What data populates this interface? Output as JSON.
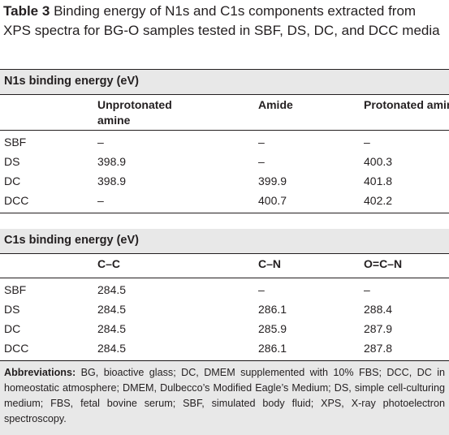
{
  "caption": {
    "label": "Table 3",
    "text": "Binding energy of N1s and C1s components extracted from XPS spectra for BG-O samples tested in SBF, DS, DC, and DCC media"
  },
  "sections": [
    {
      "title": "N1s binding energy (eV)",
      "columns": [
        "Unprotonated amine",
        "Amide",
        "Protonated amine"
      ],
      "rows": [
        [
          "SBF",
          "–",
          "–",
          "–"
        ],
        [
          "DS",
          "398.9",
          "–",
          "400.3"
        ],
        [
          "DC",
          "398.9",
          "399.9",
          "401.8"
        ],
        [
          "DCC",
          "–",
          "400.7",
          "402.2"
        ]
      ]
    },
    {
      "title": "C1s binding energy (eV)",
      "columns": [
        "C–C",
        "C–N",
        "O=C–N"
      ],
      "rows": [
        [
          "SBF",
          "284.5",
          "–",
          "–"
        ],
        [
          "DS",
          "284.5",
          "286.1",
          "288.4"
        ],
        [
          "DC",
          "284.5",
          "285.9",
          "287.9"
        ],
        [
          "DCC",
          "284.5",
          "286.1",
          "287.8"
        ]
      ]
    }
  ],
  "footnote": {
    "label": "Abbreviations:",
    "text": "BG, bioactive glass; DC, DMEM supplemented with 10% FBS; DCC, DC in homeostatic atmosphere; DMEM, Dulbecco’s Modified Eagle’s Medium; DS, simple cell-culturing medium; FBS, fetal bovine serum; SBF, simulated body fluid; XPS, X-ray photoelectron spectroscopy."
  }
}
